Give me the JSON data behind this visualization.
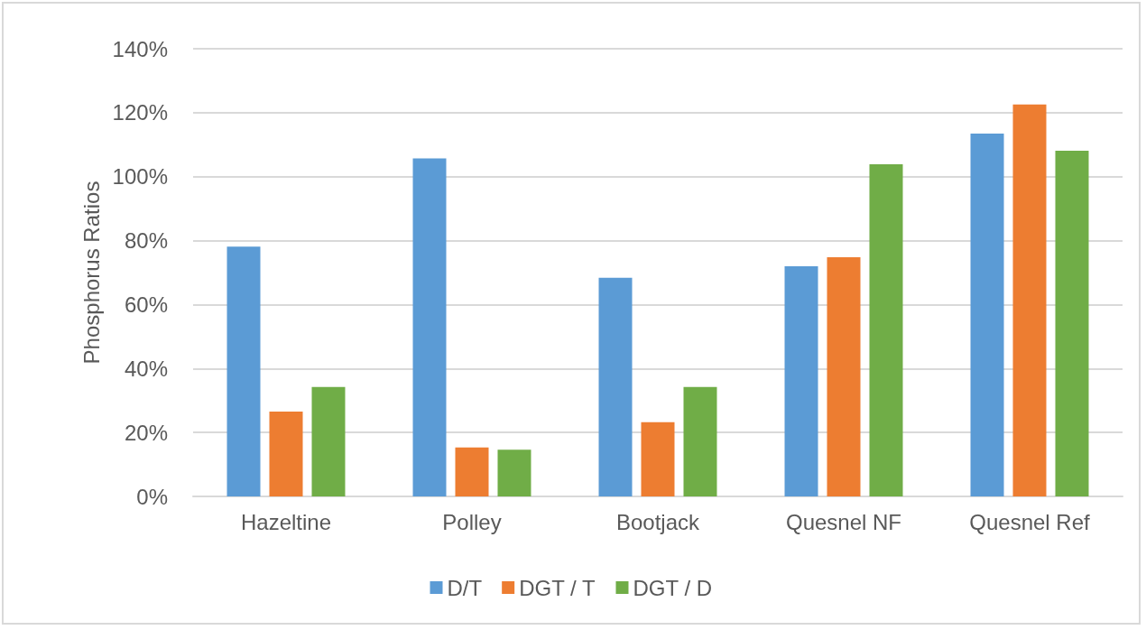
{
  "chart_data": {
    "type": "bar",
    "ylabel": "Phosphorus Ratios",
    "categories": [
      "Hazeltine",
      "Polley",
      "Bootjack",
      "Quesnel NF",
      "Quesnel Ref"
    ],
    "series": [
      {
        "name": "D/T",
        "color": "#5b9bd5",
        "values": [
          78.1,
          105.7,
          68.4,
          72.0,
          113.5
        ]
      },
      {
        "name": "DGT / T",
        "color": "#ed7d31",
        "values": [
          26.5,
          15.3,
          23.2,
          74.8,
          122.6
        ]
      },
      {
        "name": "DGT / D",
        "color": "#70ad47",
        "values": [
          34.2,
          14.6,
          34.2,
          103.9,
          108.1
        ]
      }
    ],
    "ylim": [
      0,
      140
    ],
    "yticks": [
      {
        "value": 0,
        "label": "0%"
      },
      {
        "value": 20,
        "label": "20%"
      },
      {
        "value": 40,
        "label": "40%"
      },
      {
        "value": 60,
        "label": "60%"
      },
      {
        "value": 80,
        "label": "80%"
      },
      {
        "value": 100,
        "label": "100%"
      },
      {
        "value": 120,
        "label": "120%"
      },
      {
        "value": 140,
        "label": "140%"
      }
    ],
    "grid": "y",
    "legend": "bottom"
  }
}
